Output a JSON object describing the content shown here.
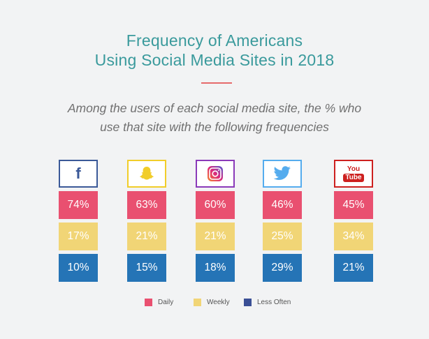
{
  "title": {
    "line1": "Frequency of Americans",
    "line2": "Using Social Media Sites in 2018"
  },
  "subtitle": {
    "line1": "Among the users of each social media site, the % who",
    "line2": "use that site with the following frequencies"
  },
  "colors": {
    "title": "#3a9a9c",
    "divider": "#e66a6a",
    "daily": "#e95070",
    "weekly": "#f1d576",
    "less_often": "#2574b6"
  },
  "chart_data": {
    "type": "table",
    "categories": [
      "Facebook",
      "Snapchat",
      "Instagram",
      "Twitter",
      "YouTube"
    ],
    "icons": [
      "facebook-icon",
      "snapchat-icon",
      "instagram-icon",
      "twitter-icon",
      "youtube-icon"
    ],
    "icon_border_colors": [
      "#3b5998",
      "#f1cd2a",
      "#8a3ab9",
      "#55acee",
      "#cd201f"
    ],
    "icon_text": {
      "youtube_1": "You",
      "youtube_2": "Tube"
    },
    "series": [
      {
        "name": "Daily",
        "values": [
          74,
          63,
          60,
          46,
          45
        ],
        "labels": [
          "74%",
          "63%",
          "60%",
          "46%",
          "45%"
        ]
      },
      {
        "name": "Weekly",
        "values": [
          17,
          21,
          21,
          25,
          34
        ],
        "labels": [
          "17%",
          "21%",
          "21%",
          "25%",
          "34%"
        ]
      },
      {
        "name": "Less Often",
        "values": [
          10,
          15,
          18,
          29,
          21
        ],
        "labels": [
          "10%",
          "15%",
          "18%",
          "29%",
          "21%"
        ]
      }
    ],
    "legend": {
      "placement": "bottom",
      "items": [
        "Daily",
        "Weekly",
        "Less Often"
      ]
    }
  }
}
